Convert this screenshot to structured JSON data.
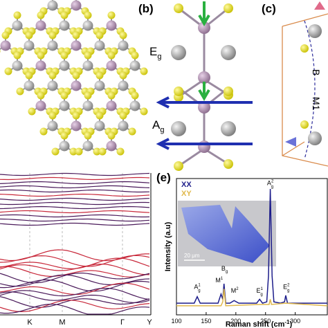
{
  "panel_b": {
    "label": "(b)",
    "modes": [
      {
        "base": "E",
        "sub": "g"
      },
      {
        "base": "A",
        "sub": "g"
      }
    ]
  },
  "panel_c": {
    "label": "(c)",
    "texts": [
      "M1",
      "B"
    ]
  },
  "panel_d": {
    "k_labels": [
      "K",
      "M",
      "Γ",
      "Y"
    ]
  },
  "chart_data": {
    "type": "line",
    "label": "(e)",
    "x_label": [
      "Raman shift (cm",
      "-1",
      ")"
    ],
    "y_label": "Intensity (a.u)",
    "xlim": [
      100,
      354
    ],
    "ylim": [
      0,
      105
    ],
    "xticks": [
      100,
      150,
      200,
      250,
      300
    ],
    "series": [
      {
        "name": "XX",
        "color": "#1c1c8a",
        "x": [
          100,
          130,
          135,
          140,
          170,
          175,
          178,
          180,
          183,
          190,
          197,
          205,
          235,
          240,
          245,
          252,
          255,
          258,
          261,
          264,
          275,
          282,
          284,
          287,
          300,
          354
        ],
        "values": [
          9,
          9,
          14,
          9,
          9,
          16,
          12,
          24,
          9,
          9,
          11,
          9,
          9,
          12,
          9,
          10,
          30,
          97,
          30,
          10,
          9,
          10,
          15,
          9,
          9,
          9
        ]
      },
      {
        "name": "XY",
        "color": "#e0b84a",
        "x": [
          100,
          175,
          178,
          180,
          183,
          240,
          256,
          258,
          260,
          284,
          354
        ],
        "values": [
          7,
          7,
          10,
          20,
          7,
          8,
          8,
          12,
          8,
          9,
          7
        ]
      }
    ],
    "annotations": [
      {
        "base": "A",
        "sub": "g",
        "sup": "1",
        "x": 135,
        "y": 20
      },
      {
        "base": "M",
        "sup": "1",
        "x": 172,
        "y": 25
      },
      {
        "base": "B",
        "sub": "g",
        "x": 181,
        "y": 34
      },
      {
        "base": "M",
        "sup": "2",
        "x": 198,
        "y": 17
      },
      {
        "base": "E",
        "sub": "g",
        "sup": "1",
        "x": 240,
        "y": 17
      },
      {
        "base": "A",
        "sub": "g",
        "sup": "2",
        "x": 258,
        "y": 100
      },
      {
        "base": "E",
        "sub": "g",
        "sup": "2",
        "x": 285,
        "y": 20
      }
    ],
    "inset_scale": "20 μm"
  }
}
